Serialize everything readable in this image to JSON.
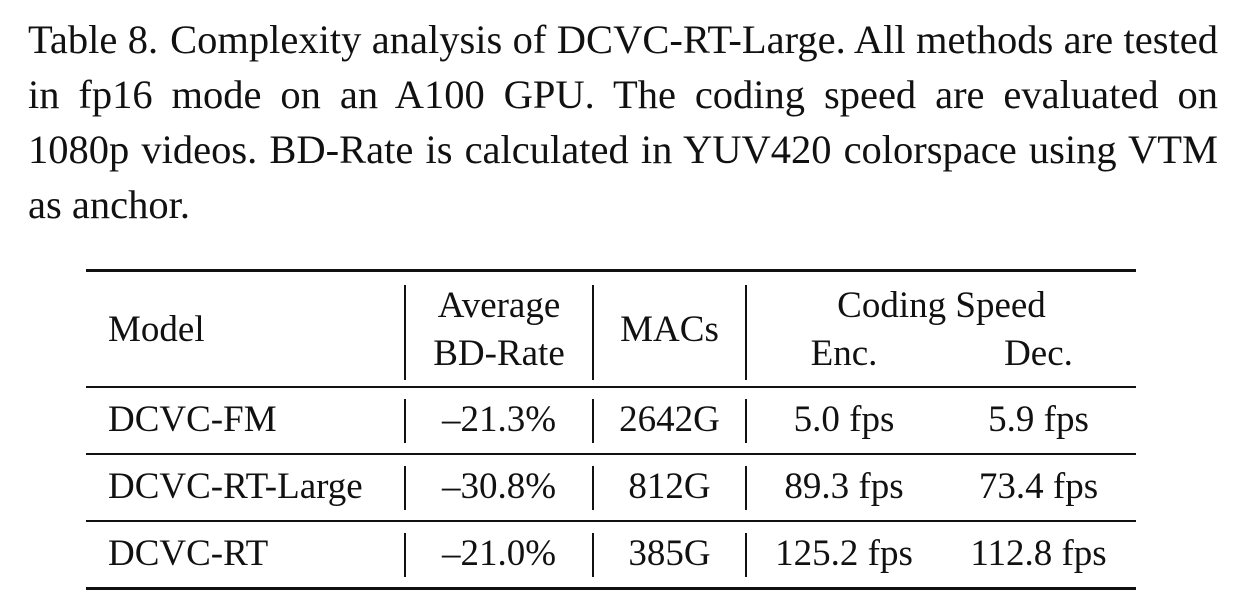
{
  "caption": {
    "label": "Table 8.",
    "text": "Complexity analysis of DCVC-RT-Large. All methods are tested in fp16 mode on an A100 GPU. The coding speed are evaluated on 1080p videos. BD-Rate is calculated in YUV420 colorspace using VTM as anchor."
  },
  "table": {
    "headers": {
      "model": "Model",
      "bd_rate_line1": "Average",
      "bd_rate_line2": "BD-Rate",
      "macs": "MACs",
      "coding_speed": "Coding Speed",
      "enc": "Enc.",
      "dec": "Dec."
    },
    "rows": [
      {
        "model": "DCVC-FM",
        "bd_rate": "–21.3%",
        "macs": "2642G",
        "enc": "5.0 fps",
        "dec": "5.9 fps"
      },
      {
        "model": "DCVC-RT-Large",
        "bd_rate": "–30.8%",
        "macs": "812G",
        "enc": "89.3 fps",
        "dec": "73.4 fps"
      },
      {
        "model": "DCVC-RT",
        "bd_rate": "–21.0%",
        "macs": "385G",
        "enc": "125.2 fps",
        "dec": "112.8 fps"
      }
    ]
  }
}
